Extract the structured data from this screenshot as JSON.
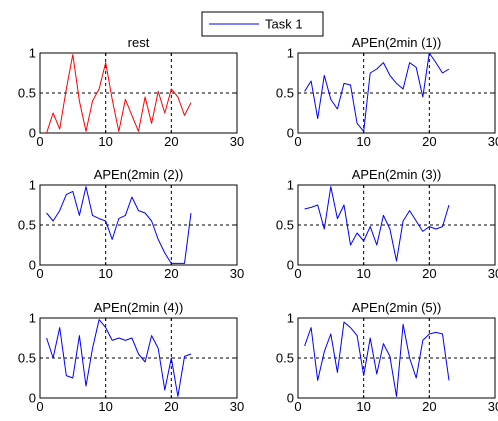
{
  "legend": {
    "label": "Task 1",
    "color": "#0000ff"
  },
  "chart_data": [
    {
      "type": "line",
      "title": "rest",
      "xlim": [
        0,
        30
      ],
      "ylim": [
        0,
        1
      ],
      "xticks": [
        0,
        10,
        20,
        30
      ],
      "yticks": [
        0,
        0.5,
        1
      ],
      "grid": "dashed at 10, 20 and 0.5",
      "color": "#ff0000",
      "x": [
        1,
        2,
        3,
        4,
        5,
        6,
        7,
        8,
        9,
        10,
        11,
        12,
        13,
        14,
        15,
        16,
        17,
        18,
        19,
        20,
        21,
        22,
        23
      ],
      "y": [
        0,
        0.25,
        0.05,
        0.55,
        0.98,
        0.4,
        0.02,
        0.4,
        0.55,
        0.88,
        0.42,
        0.02,
        0.42,
        0.22,
        0.02,
        0.45,
        0.12,
        0.52,
        0.25,
        0.55,
        0.45,
        0.22,
        0.38
      ]
    },
    {
      "type": "line",
      "title": "APEn(2min (1))",
      "xlim": [
        0,
        30
      ],
      "ylim": [
        0,
        1
      ],
      "xticks": [
        0,
        10,
        20,
        30
      ],
      "yticks": [
        0,
        0.5,
        1
      ],
      "grid": "dashed at 10, 20 and 0.5",
      "color": "#0000ff",
      "x": [
        1,
        2,
        3,
        4,
        5,
        6,
        7,
        8,
        9,
        10,
        11,
        12,
        13,
        14,
        15,
        16,
        17,
        18,
        19,
        20,
        21,
        22,
        23
      ],
      "y": [
        0.52,
        0.65,
        0.18,
        0.72,
        0.42,
        0.3,
        0.62,
        0.6,
        0.12,
        0.02,
        0.75,
        0.8,
        0.88,
        0.72,
        0.62,
        0.55,
        0.88,
        0.82,
        0.45,
        1.0,
        0.88,
        0.75,
        0.8
      ]
    },
    {
      "type": "line",
      "title": "APEn(2min (2))",
      "xlim": [
        0,
        30
      ],
      "ylim": [
        0,
        1
      ],
      "xticks": [
        0,
        10,
        20,
        30
      ],
      "yticks": [
        0,
        0.5,
        1
      ],
      "grid": "dashed at 10, 20 and 0.5",
      "color": "#0000ff",
      "x": [
        1,
        2,
        3,
        4,
        5,
        6,
        7,
        8,
        9,
        10,
        11,
        12,
        13,
        14,
        15,
        16,
        17,
        18,
        19,
        20,
        21,
        22,
        23
      ],
      "y": [
        0.65,
        0.55,
        0.68,
        0.88,
        0.92,
        0.62,
        0.98,
        0.62,
        0.58,
        0.55,
        0.32,
        0.58,
        0.62,
        0.85,
        0.68,
        0.65,
        0.55,
        0.32,
        0.15,
        0.02,
        0.02,
        0.02,
        0.65
      ]
    },
    {
      "type": "line",
      "title": "APEn(2min (3))",
      "xlim": [
        0,
        30
      ],
      "ylim": [
        0,
        1
      ],
      "xticks": [
        0,
        10,
        20,
        30
      ],
      "yticks": [
        0,
        0.5,
        1
      ],
      "grid": "dashed at 10, 20 and 0.5",
      "color": "#0000ff",
      "x": [
        1,
        2,
        3,
        4,
        5,
        6,
        7,
        8,
        9,
        10,
        11,
        12,
        13,
        14,
        15,
        16,
        17,
        18,
        19,
        20,
        21,
        22,
        23
      ],
      "y": [
        0.7,
        0.72,
        0.75,
        0.45,
        0.98,
        0.58,
        0.75,
        0.25,
        0.4,
        0.3,
        0.48,
        0.25,
        0.62,
        0.45,
        0.05,
        0.55,
        0.68,
        0.55,
        0.42,
        0.48,
        0.45,
        0.48,
        0.75
      ]
    },
    {
      "type": "line",
      "title": "APEn(2min (4))",
      "xlim": [
        0,
        30
      ],
      "ylim": [
        0,
        1
      ],
      "xticks": [
        0,
        10,
        20,
        30
      ],
      "yticks": [
        0,
        0.5,
        1
      ],
      "grid": "dashed at 10, 20 and 0.5",
      "color": "#0000ff",
      "x": [
        1,
        2,
        3,
        4,
        5,
        6,
        7,
        8,
        9,
        10,
        11,
        12,
        13,
        14,
        15,
        16,
        17,
        18,
        19,
        20,
        21,
        22,
        23
      ],
      "y": [
        0.75,
        0.5,
        0.88,
        0.28,
        0.25,
        0.78,
        0.15,
        0.62,
        0.98,
        0.88,
        0.72,
        0.75,
        0.72,
        0.75,
        0.55,
        0.45,
        0.78,
        0.62,
        0.1,
        0.5,
        0.02,
        0.52,
        0.55
      ]
    },
    {
      "type": "line",
      "title": "APEn(2min (5))",
      "xlim": [
        0,
        30
      ],
      "ylim": [
        0,
        1
      ],
      "xticks": [
        0,
        10,
        20,
        30
      ],
      "yticks": [
        0,
        0.5,
        1
      ],
      "grid": "dashed at 10, 20 and 0.5",
      "color": "#0000ff",
      "x": [
        1,
        2,
        3,
        4,
        5,
        6,
        7,
        8,
        9,
        10,
        11,
        12,
        13,
        14,
        15,
        16,
        17,
        18,
        19,
        20,
        21,
        22,
        23
      ],
      "y": [
        0.65,
        0.88,
        0.22,
        0.58,
        0.8,
        0.32,
        0.95,
        0.88,
        0.78,
        0.28,
        0.75,
        0.3,
        0.68,
        0.52,
        0.02,
        0.92,
        0.5,
        0.25,
        0.72,
        0.8,
        0.82,
        0.8,
        0.22
      ]
    }
  ]
}
